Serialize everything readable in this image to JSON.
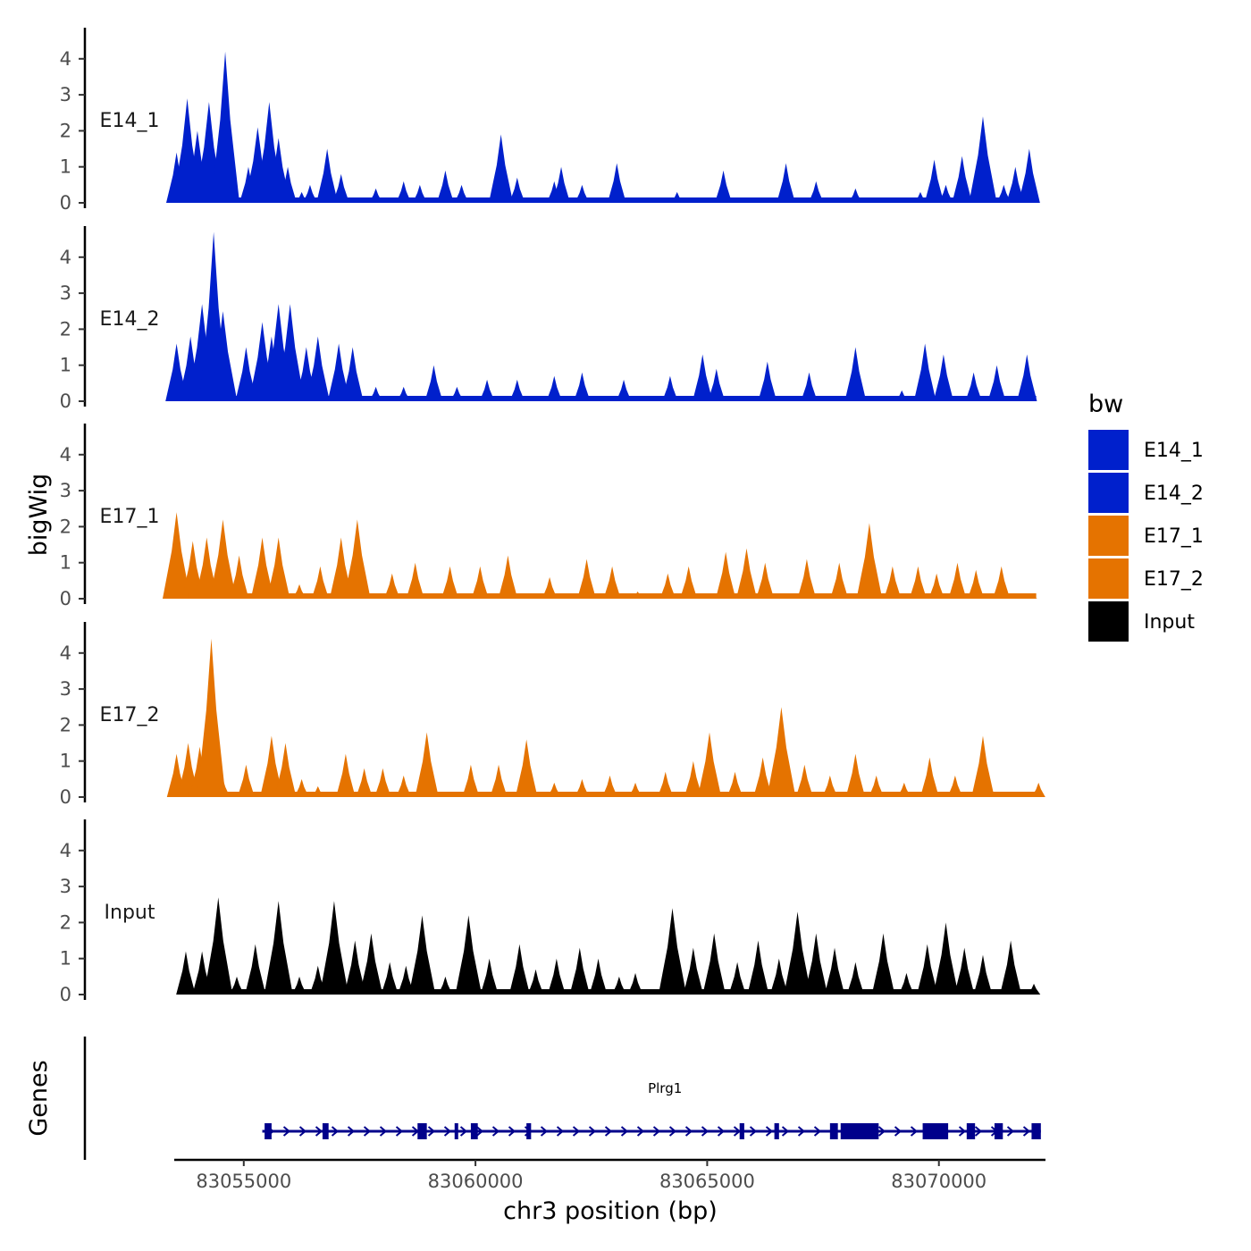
{
  "chart_data": {
    "type": "area",
    "ylabel": "bigWig",
    "xlabel": "chr3 position (bp)",
    "xlim": [
      83053500,
      83072300
    ],
    "ylim": [
      0,
      4.8
    ],
    "y_ticks": [
      "0",
      "1",
      "2",
      "3",
      "4"
    ],
    "x_ticks": [
      {
        "value": 83055000,
        "label": "83055000"
      },
      {
        "value": 83060000,
        "label": "83060000"
      },
      {
        "value": 83065000,
        "label": "83065000"
      },
      {
        "value": 83070000,
        "label": "83070000"
      }
    ],
    "legend": {
      "title": "bw",
      "entries": [
        {
          "name": "E14_1",
          "color": "#0020CC"
        },
        {
          "name": "E14_2",
          "color": "#0020CC"
        },
        {
          "name": "E17_1",
          "color": "#E57300"
        },
        {
          "name": "E17_2",
          "color": "#E57300"
        },
        {
          "name": "Input",
          "color": "#000000"
        }
      ]
    },
    "tracks": [
      {
        "name": "E14_1",
        "color": "#0020CC",
        "peaks": [
          [
            83053550,
            1.4
          ],
          [
            83053780,
            2.9
          ],
          [
            83054000,
            2.0
          ],
          [
            83054250,
            2.8
          ],
          [
            83054480,
            1.9
          ],
          [
            83054600,
            4.2
          ],
          [
            83054700,
            0.5
          ],
          [
            83055100,
            1.0
          ],
          [
            83055300,
            2.1
          ],
          [
            83055550,
            2.8
          ],
          [
            83055750,
            1.8
          ],
          [
            83055950,
            1.0
          ],
          [
            83056250,
            0.3
          ],
          [
            83056430,
            0.5
          ],
          [
            83056800,
            1.5
          ],
          [
            83057100,
            0.8
          ],
          [
            83057850,
            0.4
          ],
          [
            83058450,
            0.6
          ],
          [
            83058800,
            0.5
          ],
          [
            83059350,
            0.9
          ],
          [
            83059700,
            0.5
          ],
          [
            83060550,
            1.9
          ],
          [
            83060900,
            0.7
          ],
          [
            83061700,
            0.6
          ],
          [
            83061850,
            1.0
          ],
          [
            83062300,
            0.5
          ],
          [
            83063050,
            1.1
          ],
          [
            83064350,
            0.3
          ],
          [
            83065350,
            0.9
          ],
          [
            83066700,
            1.1
          ],
          [
            83067350,
            0.6
          ],
          [
            83068200,
            0.4
          ],
          [
            83069600,
            0.3
          ],
          [
            83069900,
            1.2
          ],
          [
            83070150,
            0.5
          ],
          [
            83070500,
            1.3
          ],
          [
            83070950,
            2.4
          ],
          [
            83071400,
            0.5
          ],
          [
            83071650,
            1.0
          ],
          [
            83071950,
            1.5
          ]
        ]
      },
      {
        "name": "E14_2",
        "color": "#0020CC",
        "peaks": [
          [
            83053550,
            1.6
          ],
          [
            83053850,
            1.8
          ],
          [
            83054100,
            2.7
          ],
          [
            83054350,
            4.7
          ],
          [
            83054550,
            2.5
          ],
          [
            83055050,
            1.5
          ],
          [
            83055400,
            2.2
          ],
          [
            83055600,
            1.8
          ],
          [
            83055750,
            2.7
          ],
          [
            83056000,
            2.7
          ],
          [
            83056350,
            1.5
          ],
          [
            83056600,
            1.8
          ],
          [
            83057050,
            1.6
          ],
          [
            83057350,
            1.5
          ],
          [
            83057850,
            0.4
          ],
          [
            83058450,
            0.4
          ],
          [
            83059100,
            1.0
          ],
          [
            83059600,
            0.4
          ],
          [
            83060250,
            0.6
          ],
          [
            83060900,
            0.6
          ],
          [
            83061700,
            0.7
          ],
          [
            83062300,
            0.8
          ],
          [
            83063200,
            0.6
          ],
          [
            83064200,
            0.7
          ],
          [
            83064900,
            1.3
          ],
          [
            83065200,
            0.9
          ],
          [
            83066300,
            1.1
          ],
          [
            83067200,
            0.8
          ],
          [
            83068200,
            1.5
          ],
          [
            83069200,
            0.3
          ],
          [
            83069700,
            1.6
          ],
          [
            83070100,
            1.3
          ],
          [
            83070750,
            0.8
          ],
          [
            83071250,
            1.0
          ],
          [
            83071900,
            1.3
          ]
        ]
      },
      {
        "name": "E17_1",
        "color": "#E57300",
        "peaks": [
          [
            83053550,
            2.4
          ],
          [
            83053900,
            1.6
          ],
          [
            83054200,
            1.7
          ],
          [
            83054550,
            2.2
          ],
          [
            83054900,
            1.2
          ],
          [
            83055400,
            1.7
          ],
          [
            83055750,
            1.7
          ],
          [
            83056200,
            0.4
          ],
          [
            83056650,
            0.9
          ],
          [
            83057100,
            1.7
          ],
          [
            83057450,
            2.2
          ],
          [
            83058200,
            0.7
          ],
          [
            83058700,
            1.0
          ],
          [
            83059450,
            0.9
          ],
          [
            83060100,
            0.9
          ],
          [
            83060700,
            1.2
          ],
          [
            83061600,
            0.6
          ],
          [
            83062400,
            1.1
          ],
          [
            83062950,
            0.9
          ],
          [
            83063500,
            0.2
          ],
          [
            83064150,
            0.7
          ],
          [
            83064600,
            0.9
          ],
          [
            83065400,
            1.3
          ],
          [
            83065850,
            1.4
          ],
          [
            83066250,
            1.0
          ],
          [
            83067150,
            1.1
          ],
          [
            83067850,
            1.0
          ],
          [
            83068500,
            2.1
          ],
          [
            83069000,
            0.9
          ],
          [
            83069550,
            0.9
          ],
          [
            83069950,
            0.7
          ],
          [
            83070400,
            1.0
          ],
          [
            83070800,
            0.8
          ],
          [
            83071350,
            0.9
          ],
          [
            83072000,
            0.1
          ]
        ]
      },
      {
        "name": "E17_2",
        "color": "#E57300",
        "peaks": [
          [
            83053550,
            1.2
          ],
          [
            83053800,
            1.5
          ],
          [
            83054050,
            1.4
          ],
          [
            83054300,
            4.4
          ],
          [
            83054550,
            0.5
          ],
          [
            83055050,
            0.9
          ],
          [
            83055600,
            1.7
          ],
          [
            83055900,
            1.5
          ],
          [
            83056250,
            0.5
          ],
          [
            83056600,
            0.3
          ],
          [
            83057200,
            1.2
          ],
          [
            83057600,
            0.8
          ],
          [
            83058000,
            0.8
          ],
          [
            83058450,
            0.6
          ],
          [
            83058950,
            1.8
          ],
          [
            83059900,
            0.9
          ],
          [
            83060500,
            0.9
          ],
          [
            83061100,
            1.6
          ],
          [
            83061700,
            0.4
          ],
          [
            83062300,
            0.5
          ],
          [
            83062900,
            0.6
          ],
          [
            83063450,
            0.4
          ],
          [
            83064100,
            0.7
          ],
          [
            83064700,
            1.0
          ],
          [
            83065050,
            1.8
          ],
          [
            83065600,
            0.7
          ],
          [
            83066200,
            1.1
          ],
          [
            83066600,
            2.5
          ],
          [
            83067100,
            0.9
          ],
          [
            83067650,
            0.6
          ],
          [
            83068200,
            1.2
          ],
          [
            83068650,
            0.6
          ],
          [
            83069250,
            0.4
          ],
          [
            83069800,
            1.1
          ],
          [
            83070350,
            0.6
          ],
          [
            83070950,
            1.7
          ],
          [
            83072150,
            0.4
          ]
        ]
      },
      {
        "name": "Input",
        "color": "#000000",
        "peaks": [
          [
            83053750,
            1.2
          ],
          [
            83054100,
            1.2
          ],
          [
            83054450,
            2.7
          ],
          [
            83054850,
            0.5
          ],
          [
            83055250,
            1.4
          ],
          [
            83055750,
            2.6
          ],
          [
            83056200,
            0.5
          ],
          [
            83056600,
            0.8
          ],
          [
            83056950,
            2.6
          ],
          [
            83057400,
            1.5
          ],
          [
            83057750,
            1.7
          ],
          [
            83058150,
            0.9
          ],
          [
            83058500,
            0.8
          ],
          [
            83058850,
            2.2
          ],
          [
            83059350,
            0.5
          ],
          [
            83059850,
            2.2
          ],
          [
            83060300,
            1.0
          ],
          [
            83060950,
            1.4
          ],
          [
            83061300,
            0.7
          ],
          [
            83061750,
            1.0
          ],
          [
            83062250,
            1.3
          ],
          [
            83062650,
            1.0
          ],
          [
            83063100,
            0.5
          ],
          [
            83063450,
            0.6
          ],
          [
            83063850,
            0.1
          ],
          [
            83064250,
            2.4
          ],
          [
            83064700,
            1.3
          ],
          [
            83065150,
            1.7
          ],
          [
            83065650,
            0.9
          ],
          [
            83066100,
            1.5
          ],
          [
            83066550,
            1.0
          ],
          [
            83066950,
            2.3
          ],
          [
            83067350,
            1.7
          ],
          [
            83067750,
            1.3
          ],
          [
            83068200,
            0.9
          ],
          [
            83068800,
            1.7
          ],
          [
            83069300,
            0.6
          ],
          [
            83069750,
            1.4
          ],
          [
            83070150,
            2.0
          ],
          [
            83070550,
            1.3
          ],
          [
            83070950,
            1.1
          ],
          [
            83071550,
            1.5
          ],
          [
            83072050,
            0.3
          ]
        ]
      }
    ],
    "genes_title": "Genes",
    "genes": [
      {
        "name": "Plrg1",
        "start": 83055400,
        "end": 83072200,
        "strand": "+",
        "exons": [
          [
            83055450,
            83055600
          ],
          [
            83056700,
            83056830
          ],
          [
            83058750,
            83058950
          ],
          [
            83059550,
            83059620
          ],
          [
            83059900,
            83060050
          ],
          [
            83061100,
            83061200
          ],
          [
            83065700,
            83065800
          ],
          [
            83066450,
            83066550
          ],
          [
            83067650,
            83067820
          ],
          [
            83067880,
            83068700
          ],
          [
            83069650,
            83070200
          ],
          [
            83070600,
            83070780
          ],
          [
            83071200,
            83071380
          ],
          [
            83072000,
            83072200
          ]
        ]
      }
    ]
  }
}
